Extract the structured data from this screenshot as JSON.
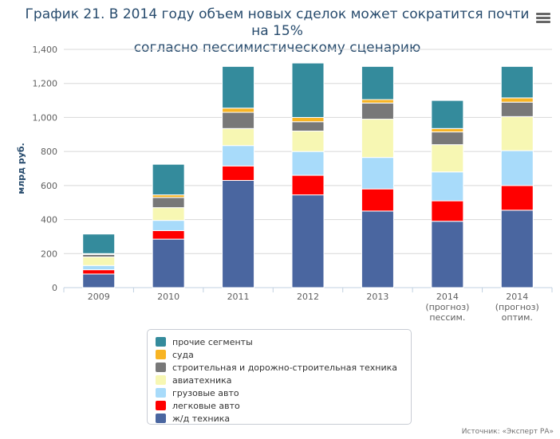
{
  "title_line1": "График 21. В 2014 году объем новых сделок может сократится почти на 15%",
  "title_line2": "согласно пессимистическому сценарию",
  "menu_icon": "hamburger-menu-icon",
  "source": "Источник: «Эксперт РА»",
  "chart_data": {
    "type": "bar",
    "stacked": true,
    "ylabel": "млрд руб.",
    "ylim": [
      0,
      1400
    ],
    "yticks": [
      "0",
      "200",
      "400",
      "600",
      "800",
      "1,000",
      "1,200",
      "1,400"
    ],
    "grid": true,
    "legend_position": "bottom",
    "categories": [
      [
        "2009"
      ],
      [
        "2010"
      ],
      [
        "2011"
      ],
      [
        "2012"
      ],
      [
        "2013"
      ],
      [
        "2014",
        "(прогноз)",
        "пессим."
      ],
      [
        "2014",
        "(прогноз)",
        "оптим."
      ]
    ],
    "series": [
      {
        "name": "ж/д техника",
        "color": "#4a66a0",
        "values": [
          80,
          285,
          630,
          545,
          450,
          390,
          455
        ]
      },
      {
        "name": "легковые авто",
        "color": "#ff0000",
        "values": [
          25,
          50,
          85,
          115,
          130,
          120,
          145
        ]
      },
      {
        "name": "грузовые авто",
        "color": "#a8dbfa",
        "values": [
          25,
          60,
          120,
          140,
          185,
          170,
          205
        ]
      },
      {
        "name": "авиатехника",
        "color": "#f7f7b3",
        "values": [
          50,
          75,
          100,
          120,
          225,
          160,
          200
        ]
      },
      {
        "name": "строительная и дорожно-строительная техника",
        "color": "#787878",
        "values": [
          15,
          60,
          95,
          55,
          95,
          75,
          85
        ]
      },
      {
        "name": "суда",
        "color": "#f8b423",
        "values": [
          5,
          15,
          25,
          25,
          20,
          20,
          25
        ]
      },
      {
        "name": "прочие сегменты",
        "color": "#348b9c",
        "values": [
          115,
          180,
          245,
          320,
          195,
          165,
          185
        ]
      }
    ]
  }
}
